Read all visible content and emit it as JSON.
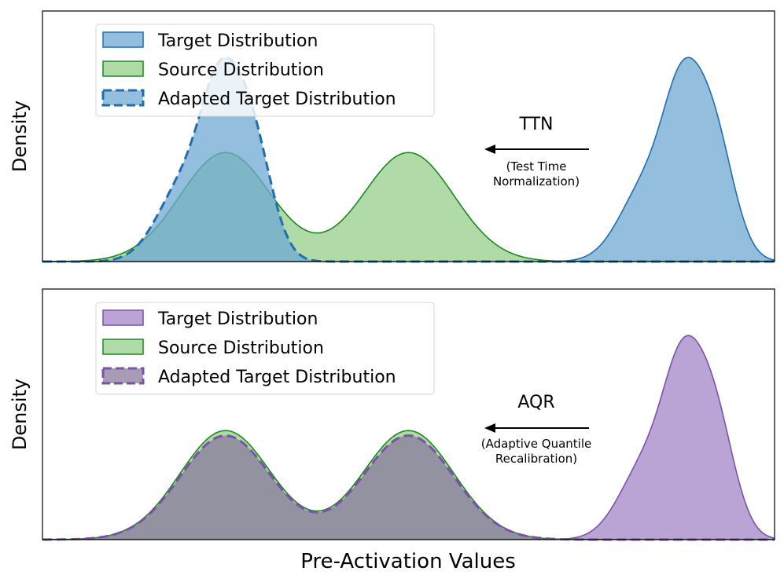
{
  "chart_data": {
    "type": "area",
    "shared_xlabel": "Pre-Activation Values",
    "x_range": [
      0,
      100
    ],
    "panels": [
      {
        "id": "ttn",
        "ylabel": "Density",
        "y_range": [
          0,
          1.0
        ],
        "ticks": "none",
        "legend_position": "top-left",
        "annotation": {
          "method": "TTN",
          "full_name_line1": "(Test Time",
          "full_name_line2": "Normalization)",
          "arrow_direction": "left"
        },
        "series": [
          {
            "name": "Target Distribution",
            "style": "filled-solid",
            "fill": "#6fa8d3",
            "fill_opacity": 0.75,
            "stroke": "#1f6faf",
            "components": [
              {
                "mean": 82.5,
                "sd": 3.6,
                "weight": 0.3
              },
              {
                "mean": 87.3,
                "sd": 2.6,
                "weight": 0.52
              },
              {
                "mean": 91.6,
                "sd": 2.8,
                "weight": 0.5
              }
            ]
          },
          {
            "name": "Source Distribution",
            "style": "filled-solid",
            "fill": "#a3d39a",
            "fill_opacity": 0.85,
            "stroke": "#1b8a1b",
            "components": [
              {
                "mean": 25,
                "sd": 6.2,
                "weight": 0.435
              },
              {
                "mean": 50,
                "sd": 6.2,
                "weight": 0.435
              }
            ]
          },
          {
            "name": "Adapted Target Distribution",
            "style": "filled-dashed",
            "fill": "#6fa8d3",
            "fill_opacity": 0.75,
            "stroke": "#1f6faf",
            "components": [
              {
                "mean": 19.3,
                "sd": 3.6,
                "weight": 0.3
              },
              {
                "mean": 24.1,
                "sd": 2.6,
                "weight": 0.52
              },
              {
                "mean": 28.4,
                "sd": 2.8,
                "weight": 0.5
              }
            ]
          }
        ]
      },
      {
        "id": "aqr",
        "ylabel": "Density",
        "y_range": [
          0,
          1.0
        ],
        "ticks": "none",
        "legend_position": "top-left",
        "annotation": {
          "method": "AQR",
          "full_name_line1": "(Adaptive Quantile",
          "full_name_line2": "Recalibration)",
          "arrow_direction": "left"
        },
        "series": [
          {
            "name": "Target Distribution",
            "style": "filled-solid",
            "fill": "#ae94cf",
            "fill_opacity": 0.85,
            "stroke": "#7a52a8",
            "components": [
              {
                "mean": 82.5,
                "sd": 3.6,
                "weight": 0.3
              },
              {
                "mean": 87.3,
                "sd": 2.6,
                "weight": 0.52
              },
              {
                "mean": 91.6,
                "sd": 2.8,
                "weight": 0.5
              }
            ]
          },
          {
            "name": "Source Distribution",
            "style": "filled-solid",
            "fill": "#a3d39a",
            "fill_opacity": 0.85,
            "stroke": "#1b8a1b",
            "components": [
              {
                "mean": 25,
                "sd": 6.2,
                "weight": 0.435
              },
              {
                "mean": 50,
                "sd": 6.2,
                "weight": 0.435
              }
            ]
          },
          {
            "name": "Adapted Target Distribution",
            "style": "filled-dashed",
            "fill": "#8a7a9e",
            "fill_opacity": 0.75,
            "stroke": "#7a52a8",
            "components": [
              {
                "mean": 25,
                "sd": 6.2,
                "weight": 0.415
              },
              {
                "mean": 50,
                "sd": 6.2,
                "weight": 0.415
              }
            ]
          }
        ]
      }
    ]
  }
}
